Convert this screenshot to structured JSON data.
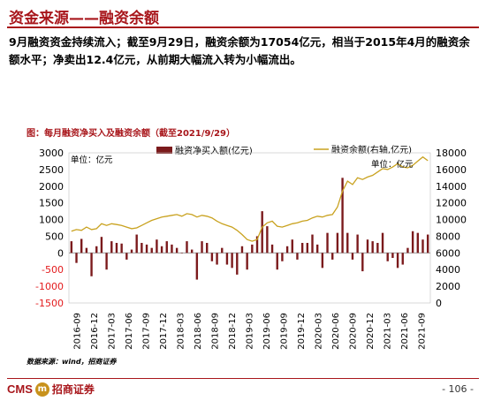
{
  "header": {
    "title": "资金来源——融资余额"
  },
  "summary": "9月融资资金持续流入；截至9月29日，融资余额为17054亿元，相当于2015年4月的融资余额水平；净卖出12.4亿元，从前期大幅流入转为小幅流出。",
  "source": "数据来源：wind，招商证券",
  "footer": {
    "logo_text": "CMS",
    "logo_badge": "m",
    "logo_cn": "招商证券",
    "page": "- 106 -"
  },
  "chart_data": {
    "type": "bar+line",
    "title": "图：每月融资净买入及融资余额（截至2021/9/29）",
    "unit_left": "单位：亿元",
    "unit_right": "单位：亿元",
    "y_left": {
      "min": -1500,
      "max": 3000,
      "ticks": [
        -1500,
        -1000,
        -500,
        0,
        500,
        1000,
        1500,
        2000,
        2500,
        3000
      ]
    },
    "y_right": {
      "min": 0,
      "max": 18000,
      "ticks": [
        0,
        2000,
        4000,
        6000,
        8000,
        10000,
        12000,
        14000,
        16000,
        18000
      ]
    },
    "x_labels": [
      "2016-09",
      "2016-12",
      "2017-03",
      "2017-06",
      "2017-09",
      "2017-12",
      "2018-03",
      "2018-06",
      "2018-09",
      "2018-12",
      "2019-03",
      "2019-06",
      "2019-09",
      "2019-12",
      "2020-03",
      "2020-06",
      "2020-09",
      "2020-12",
      "2021-03",
      "2021-06",
      "2021-09"
    ],
    "series": [
      {
        "name": "融资净买入额(亿元)",
        "type": "bar",
        "color": "#7b1a1c",
        "values": [
          350,
          -300,
          420,
          150,
          -700,
          200,
          480,
          -500,
          350,
          300,
          280,
          -200,
          100,
          550,
          300,
          250,
          150,
          400,
          200,
          350,
          250,
          150,
          0,
          350,
          100,
          -800,
          350,
          300,
          -250,
          -350,
          150,
          -350,
          -450,
          -650,
          200,
          -500,
          250,
          500,
          1250,
          800,
          250,
          -500,
          -250,
          200,
          400,
          -200,
          300,
          300,
          550,
          250,
          -450,
          600,
          -200,
          600,
          2250,
          600,
          -200,
          550,
          -550,
          400,
          350,
          300,
          600,
          -250,
          -150,
          -450,
          -350,
          150,
          650,
          600,
          400,
          550
        ]
      },
      {
        "name": "融资余额(右轴,亿元)",
        "type": "line",
        "color": "#c9a21f",
        "values": [
          8600,
          8800,
          8700,
          9100,
          8800,
          8900,
          9500,
          9300,
          9500,
          9400,
          9300,
          9100,
          8900,
          9000,
          9300,
          9600,
          9900,
          10100,
          10300,
          10400,
          10500,
          10600,
          10400,
          10700,
          10600,
          10300,
          10500,
          10400,
          10200,
          9800,
          9500,
          9300,
          9100,
          8700,
          8200,
          7600,
          7400,
          7600,
          9100,
          9600,
          9800,
          9200,
          9100,
          9300,
          9500,
          9600,
          9800,
          9900,
          10200,
          10400,
          10300,
          10500,
          10600,
          11500,
          13400,
          14600,
          14200,
          15000,
          14800,
          15100,
          15300,
          15700,
          16100,
          16000,
          16300,
          16700,
          16300,
          16200,
          16500,
          17000,
          17500,
          17054
        ]
      }
    ]
  }
}
